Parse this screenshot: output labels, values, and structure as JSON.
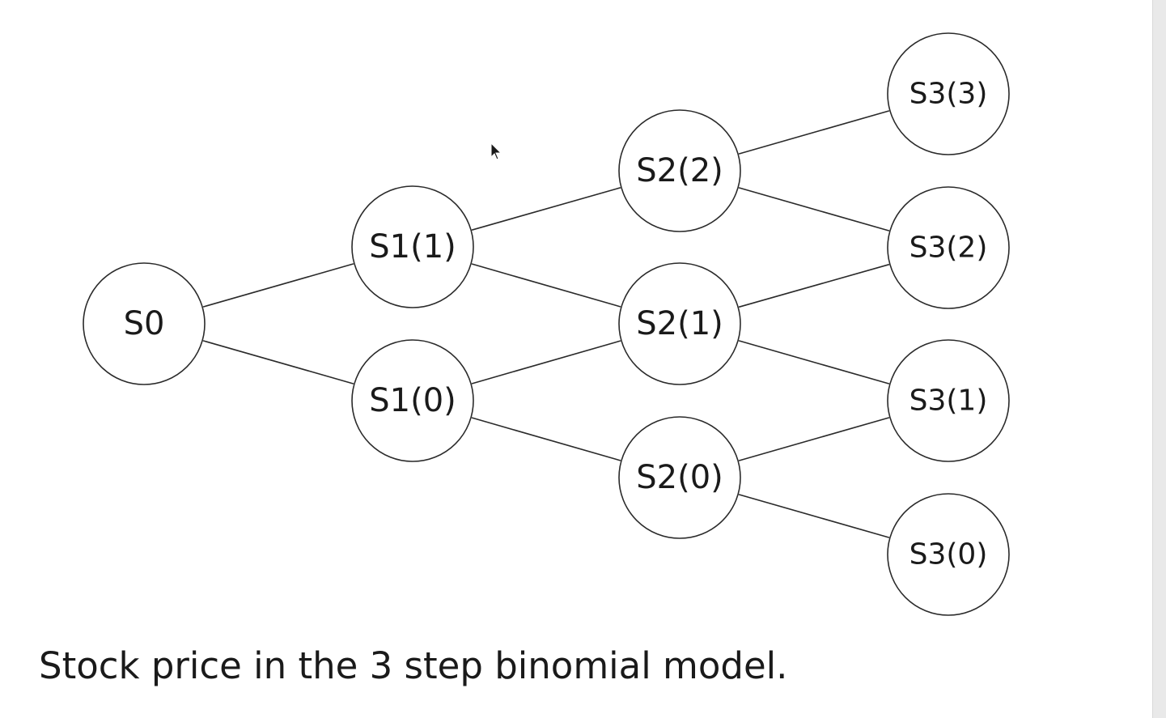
{
  "diagram": {
    "nodes": [
      {
        "id": "s0",
        "label": "S0",
        "step": 0
      },
      {
        "id": "s1_1",
        "label": "S1(1)",
        "step": 1
      },
      {
        "id": "s1_0",
        "label": "S1(0)",
        "step": 1
      },
      {
        "id": "s2_2",
        "label": "S2(2)",
        "step": 2
      },
      {
        "id": "s2_1",
        "label": "S2(1)",
        "step": 2
      },
      {
        "id": "s2_0",
        "label": "S2(0)",
        "step": 2
      },
      {
        "id": "s3_3",
        "label": "S3(3)",
        "step": 3
      },
      {
        "id": "s3_2",
        "label": "S3(2)",
        "step": 3
      },
      {
        "id": "s3_1",
        "label": "S3(1)",
        "step": 3
      },
      {
        "id": "s3_0",
        "label": "S3(0)",
        "step": 3
      }
    ],
    "edges": [
      {
        "from": "s0",
        "to": "s1_1"
      },
      {
        "from": "s0",
        "to": "s1_0"
      },
      {
        "from": "s1_1",
        "to": "s2_2"
      },
      {
        "from": "s1_1",
        "to": "s2_1"
      },
      {
        "from": "s1_0",
        "to": "s2_1"
      },
      {
        "from": "s1_0",
        "to": "s2_0"
      },
      {
        "from": "s2_2",
        "to": "s3_3"
      },
      {
        "from": "s2_2",
        "to": "s3_2"
      },
      {
        "from": "s2_1",
        "to": "s3_2"
      },
      {
        "from": "s2_1",
        "to": "s3_1"
      },
      {
        "from": "s2_0",
        "to": "s3_1"
      },
      {
        "from": "s2_0",
        "to": "s3_0"
      }
    ]
  },
  "caption": "Stock price in the 3 step binomial model."
}
